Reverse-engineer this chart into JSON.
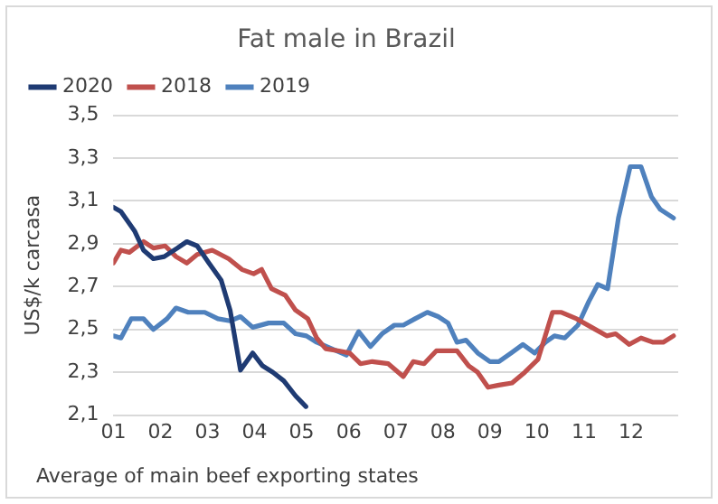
{
  "chart_data": {
    "type": "line",
    "title": "Fat male in Brazil",
    "ylabel": "US$/k carcasa",
    "annotations": [
      "Average of main beef exporting states"
    ],
    "xlim": [
      1,
      13
    ],
    "xticks": [
      {
        "value": 1,
        "label": "01"
      },
      {
        "value": 2,
        "label": "02"
      },
      {
        "value": 3,
        "label": "03"
      },
      {
        "value": 4,
        "label": "04"
      },
      {
        "value": 5,
        "label": "05"
      },
      {
        "value": 6,
        "label": "06"
      },
      {
        "value": 7,
        "label": "07"
      },
      {
        "value": 8,
        "label": "08"
      },
      {
        "value": 9,
        "label": "09"
      },
      {
        "value": 10,
        "label": "10"
      },
      {
        "value": 11,
        "label": "11"
      },
      {
        "value": 12,
        "label": "12"
      }
    ],
    "ylim": [
      2.1,
      3.5
    ],
    "yticks": [
      {
        "value": 2.1,
        "label": "2,1"
      },
      {
        "value": 2.3,
        "label": "2,3"
      },
      {
        "value": 2.5,
        "label": "2,5"
      },
      {
        "value": 2.7,
        "label": "2,7"
      },
      {
        "value": 2.9,
        "label": "2,9"
      },
      {
        "value": 3.1,
        "label": "3,1"
      },
      {
        "value": 3.3,
        "label": "3,3"
      },
      {
        "value": 3.5,
        "label": "3,5"
      }
    ],
    "grid": "y",
    "legend": "top",
    "marker": "none",
    "line_style": "solid",
    "series": [
      {
        "name": "2020",
        "color": "#1f3b73",
        "x": [
          1.0,
          1.16,
          1.45,
          1.64,
          1.85,
          2.08,
          2.36,
          2.56,
          2.78,
          3.03,
          3.29,
          3.48,
          3.7,
          3.96,
          4.17,
          4.39,
          4.62,
          4.87,
          5.09
        ],
        "values": [
          3.07,
          3.05,
          2.96,
          2.87,
          2.83,
          2.84,
          2.88,
          2.91,
          2.89,
          2.81,
          2.73,
          2.59,
          2.31,
          2.39,
          2.33,
          2.3,
          2.26,
          2.19,
          2.14
        ]
      },
      {
        "name": "2018",
        "color": "#c0504d",
        "x": [
          1.0,
          1.16,
          1.34,
          1.64,
          1.85,
          2.1,
          2.33,
          2.56,
          2.78,
          3.1,
          3.45,
          3.73,
          3.98,
          4.15,
          4.36,
          4.65,
          4.87,
          5.13,
          5.32,
          5.51,
          5.79,
          6.02,
          6.25,
          6.5,
          6.84,
          7.16,
          7.37,
          7.6,
          7.86,
          8.3,
          8.55,
          8.74,
          8.96,
          9.19,
          9.47,
          9.74,
          10.02,
          10.33,
          10.52,
          10.84,
          11.16,
          11.48,
          11.67,
          11.96,
          12.21,
          12.47,
          12.68,
          12.9
        ],
        "values": [
          2.81,
          2.87,
          2.86,
          2.91,
          2.88,
          2.89,
          2.84,
          2.81,
          2.85,
          2.87,
          2.83,
          2.78,
          2.76,
          2.78,
          2.69,
          2.66,
          2.59,
          2.55,
          2.46,
          2.41,
          2.4,
          2.39,
          2.34,
          2.35,
          2.34,
          2.28,
          2.35,
          2.34,
          2.4,
          2.4,
          2.33,
          2.3,
          2.23,
          2.24,
          2.25,
          2.3,
          2.36,
          2.58,
          2.58,
          2.55,
          2.51,
          2.47,
          2.48,
          2.43,
          2.46,
          2.44,
          2.44,
          2.47
        ]
      },
      {
        "name": "2019",
        "color": "#4f81bd",
        "x": [
          1.0,
          1.16,
          1.38,
          1.64,
          1.85,
          2.14,
          2.33,
          2.59,
          2.94,
          3.22,
          3.48,
          3.7,
          3.96,
          4.3,
          4.62,
          4.87,
          5.1,
          5.32,
          5.64,
          5.95,
          6.21,
          6.46,
          6.71,
          6.97,
          7.16,
          7.41,
          7.67,
          7.9,
          8.11,
          8.3,
          8.49,
          8.74,
          9.0,
          9.19,
          9.45,
          9.7,
          9.95,
          10.18,
          10.37,
          10.59,
          10.87,
          11.1,
          11.29,
          11.5,
          11.73,
          11.98,
          12.21,
          12.43,
          12.62,
          12.9
        ],
        "values": [
          2.47,
          2.46,
          2.55,
          2.55,
          2.5,
          2.55,
          2.6,
          2.58,
          2.58,
          2.55,
          2.54,
          2.56,
          2.51,
          2.53,
          2.53,
          2.48,
          2.47,
          2.44,
          2.41,
          2.38,
          2.49,
          2.42,
          2.48,
          2.52,
          2.52,
          2.55,
          2.58,
          2.56,
          2.53,
          2.44,
          2.45,
          2.39,
          2.35,
          2.35,
          2.39,
          2.43,
          2.39,
          2.44,
          2.47,
          2.46,
          2.52,
          2.63,
          2.71,
          2.69,
          3.02,
          3.26,
          3.26,
          3.12,
          3.06,
          3.02
        ]
      }
    ]
  }
}
